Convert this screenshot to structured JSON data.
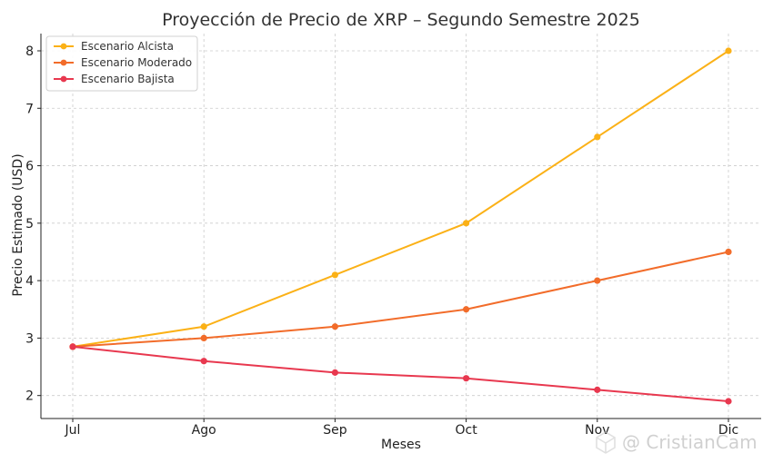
{
  "chart_data": {
    "type": "line",
    "title": "Proyección de Precio de XRP – Segundo Semestre 2025",
    "xlabel": "Meses",
    "ylabel": "Precio Estimado (USD)",
    "categories": [
      "Jul",
      "Ago",
      "Sep",
      "Oct",
      "Nov",
      "Dic"
    ],
    "yticks": [
      2,
      3,
      4,
      5,
      6,
      7,
      8
    ],
    "ylim": [
      1.6,
      8.3
    ],
    "grid": true,
    "legend_position": "top-left",
    "series": [
      {
        "name": "Escenario Alcista",
        "color": "#FBB117",
        "values": [
          2.85,
          3.2,
          4.1,
          5.0,
          6.5,
          8.0
        ]
      },
      {
        "name": "Escenario Moderado",
        "color": "#F26C2A",
        "values": [
          2.85,
          3.0,
          3.2,
          3.5,
          4.0,
          4.5
        ]
      },
      {
        "name": "Escenario Bajista",
        "color": "#E8384F",
        "values": [
          2.85,
          2.6,
          2.4,
          2.3,
          2.1,
          1.9
        ]
      }
    ]
  },
  "watermark": {
    "text": "@ CristianCam",
    "icon": "cube-logo-icon"
  }
}
